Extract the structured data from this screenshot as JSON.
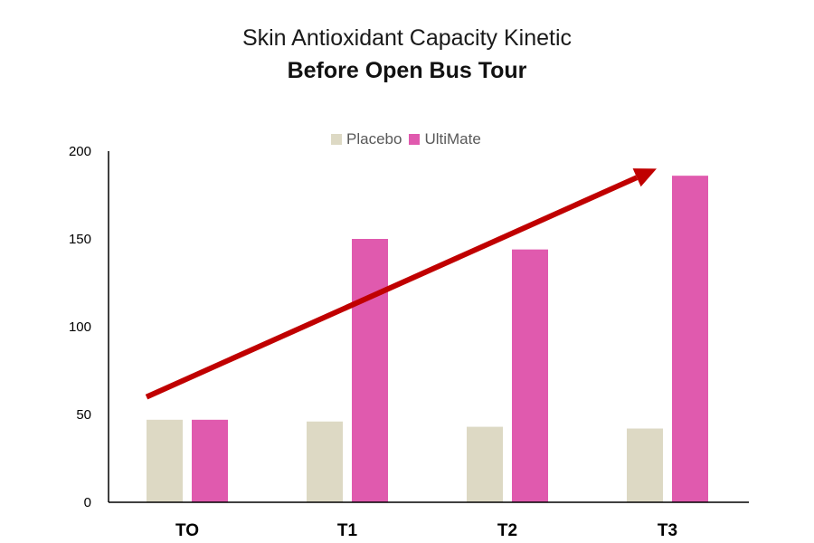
{
  "chart_data": {
    "type": "bar",
    "title": "Skin Antioxidant Capacity Kinetic",
    "subtitle": "Before Open Bus Tour",
    "categories": [
      "TO",
      "T1",
      "T2",
      "T3"
    ],
    "series": [
      {
        "name": "Placebo",
        "values": [
          47,
          46,
          43,
          42
        ],
        "color": "#DDD9C4"
      },
      {
        "name": "UltiMate",
        "values": [
          47,
          150,
          144,
          186
        ],
        "color": "#E05AAE"
      }
    ],
    "ylim": [
      0,
      200
    ],
    "y_ticks": [
      0,
      50,
      100,
      150,
      200
    ],
    "xlabel": "",
    "ylabel": "",
    "grid": false,
    "legend_position": "top-center",
    "trend_arrow": {
      "color": "#C00000",
      "from": {
        "category": "TO",
        "value": 60
      },
      "to": {
        "category": "T3",
        "value": 190
      }
    }
  }
}
